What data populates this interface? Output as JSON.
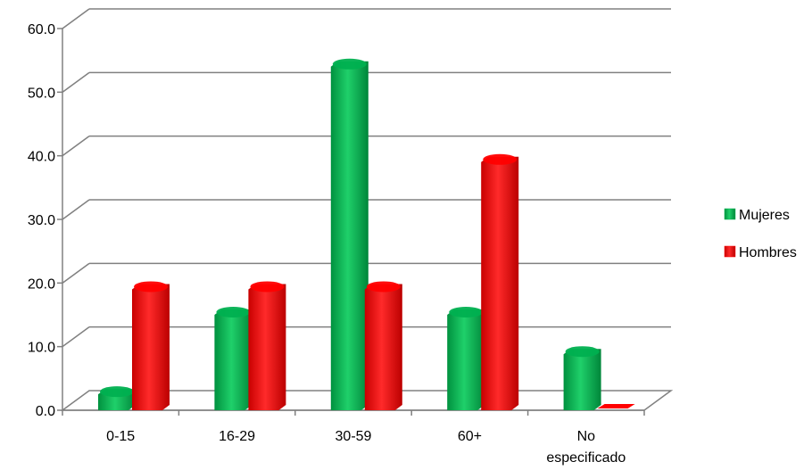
{
  "chart_data": {
    "type": "bar",
    "categories": [
      "0-15",
      "16-29",
      "30-59",
      "60+",
      "No especificado"
    ],
    "series": [
      {
        "name": "Mujeres",
        "values": [
          2.5,
          15.0,
          54.0,
          15.0,
          8.8
        ]
      },
      {
        "name": "Hombres",
        "values": [
          19.0,
          19.0,
          19.0,
          39.0,
          0.0
        ]
      }
    ],
    "y_ticks": [
      "0.0",
      "10.0",
      "20.0",
      "30.0",
      "40.0",
      "50.0",
      "60.0"
    ],
    "ylim": [
      0,
      60
    ],
    "grid": true,
    "legend_position": "right",
    "colors": {
      "Mujeres": "#00b050",
      "Hombres": "#ff0000",
      "grid": "#808080"
    }
  }
}
